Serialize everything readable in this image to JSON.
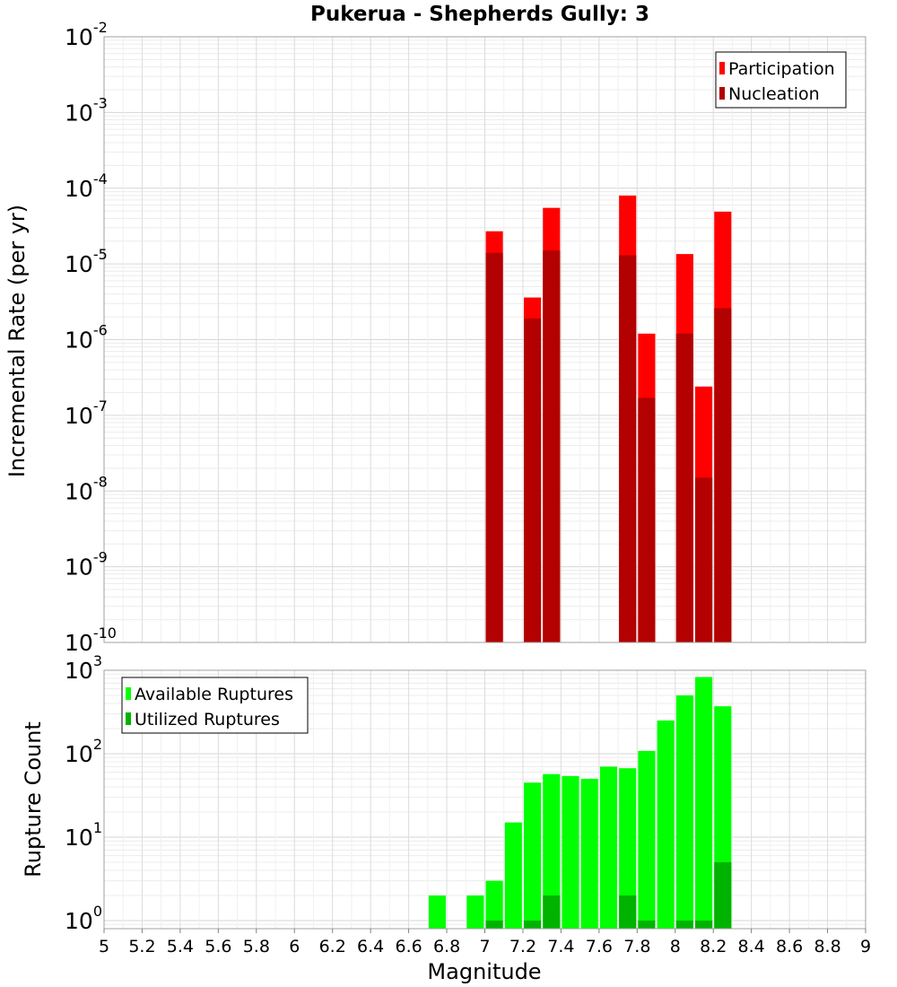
{
  "title": "Pukerua - Shepherds Gully: 3",
  "xlabel": "Magnitude",
  "chart_data": [
    {
      "type": "bar",
      "panel": "top",
      "ylabel": "Incremental Rate (per yr)",
      "yscale": "log",
      "ylim": [
        1e-10,
        0.01
      ],
      "xlim": [
        5,
        9
      ],
      "grid": true,
      "legend_position": "top-right",
      "series": [
        {
          "name": "Participation",
          "color": "#ff0000",
          "x": [
            7.05,
            7.25,
            7.35,
            7.75,
            7.85,
            8.05,
            8.15,
            8.25
          ],
          "values": [
            2.7e-05,
            3.6e-06,
            5.5e-05,
            8e-05,
            1.2e-06,
            1.35e-05,
            2.4e-07,
            4.9e-05
          ]
        },
        {
          "name": "Nucleation",
          "color": "#b30000",
          "x": [
            7.05,
            7.25,
            7.35,
            7.75,
            7.85,
            8.05,
            8.15,
            8.25
          ],
          "values": [
            1.4e-05,
            1.9e-06,
            1.5e-05,
            1.3e-05,
            1.7e-07,
            1.2e-06,
            1.5e-08,
            2.6e-06
          ]
        }
      ]
    },
    {
      "type": "bar",
      "panel": "bottom",
      "ylabel": "Rupture Count",
      "yscale": "log",
      "ylim": [
        0.8,
        1000
      ],
      "xlim": [
        5,
        9
      ],
      "xticks": [
        "5",
        "5.2",
        "5.4",
        "5.6",
        "5.8",
        "6",
        "6.2",
        "6.4",
        "6.6",
        "6.8",
        "7",
        "7.2",
        "7.4",
        "7.6",
        "7.8",
        "8",
        "8.2",
        "8.4",
        "8.6",
        "8.8",
        "9"
      ],
      "grid": true,
      "legend_position": "top-left",
      "series": [
        {
          "name": "Available Ruptures",
          "color": "#00ff00",
          "x": [
            6.75,
            6.95,
            7.05,
            7.15,
            7.25,
            7.35,
            7.45,
            7.55,
            7.65,
            7.75,
            7.85,
            7.95,
            8.05,
            8.15,
            8.25
          ],
          "values": [
            2,
            2,
            3,
            15,
            45,
            57,
            54,
            50,
            70,
            67,
            108,
            250,
            500,
            830,
            370
          ]
        },
        {
          "name": "Utilized Ruptures",
          "color": "#00b300",
          "x": [
            7.05,
            7.25,
            7.35,
            7.75,
            7.85,
            8.05,
            8.15,
            8.25
          ],
          "values": [
            1,
            1,
            2,
            2,
            1,
            1,
            1,
            5
          ]
        }
      ]
    }
  ]
}
